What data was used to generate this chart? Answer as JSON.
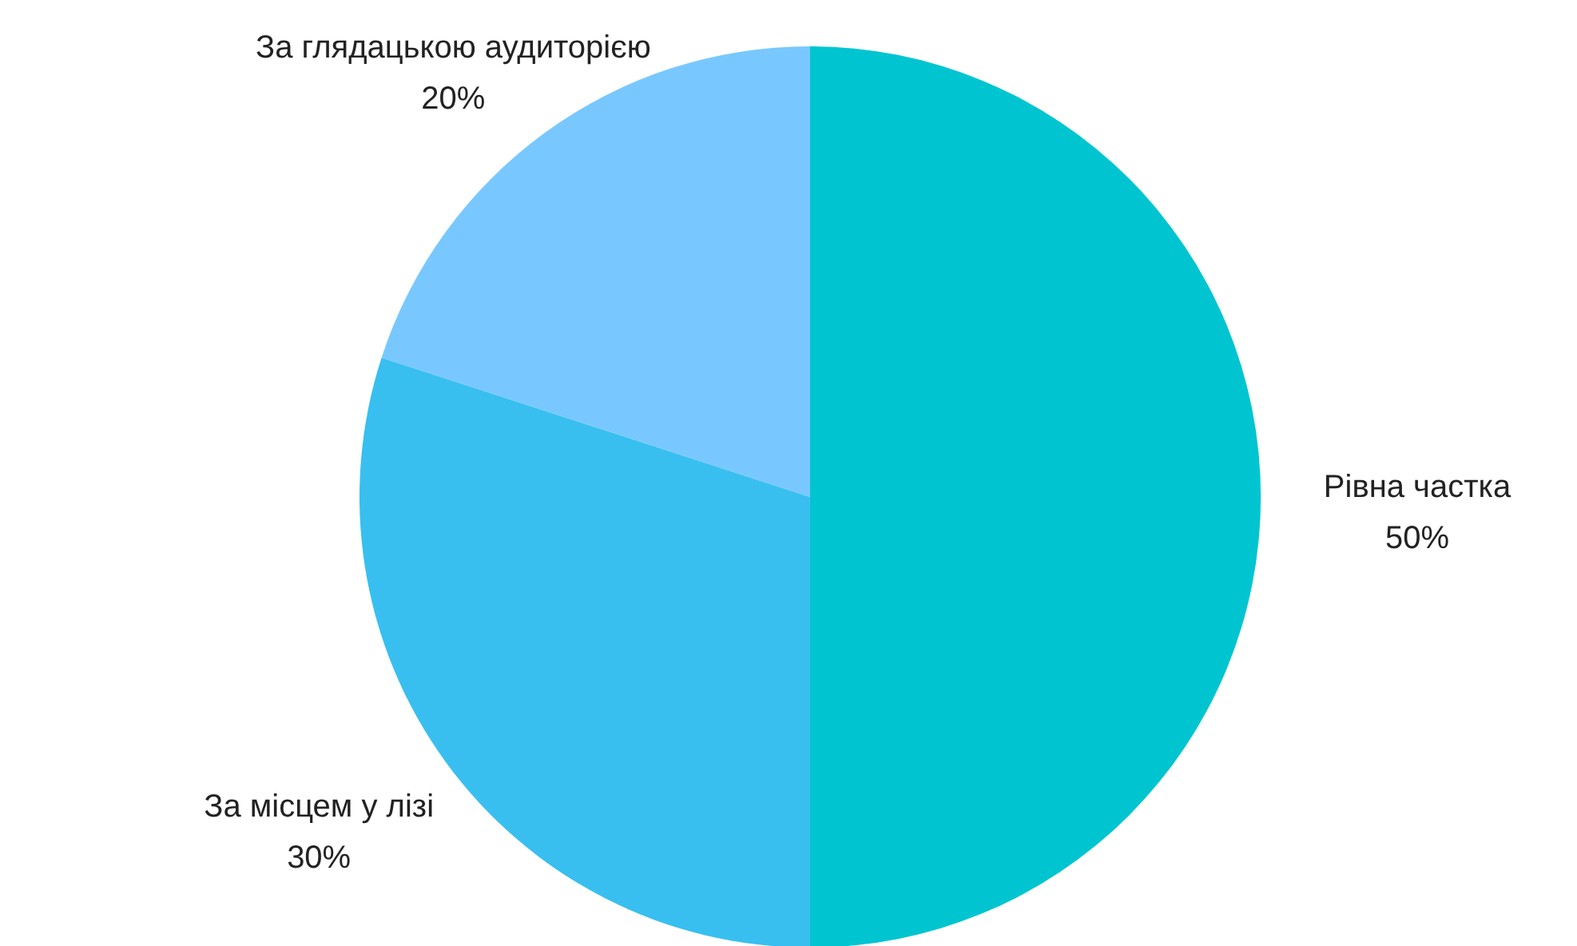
{
  "chart_data": {
    "type": "pie",
    "categories": [
      "Рівна частка",
      "За місцем у лізі",
      "За глядацькою аудиторією"
    ],
    "values": [
      50,
      30,
      20
    ],
    "value_labels": [
      "50%",
      "30%",
      "20%"
    ],
    "colors": [
      "#00c5d0",
      "#38bff0",
      "#78c8ff"
    ]
  }
}
